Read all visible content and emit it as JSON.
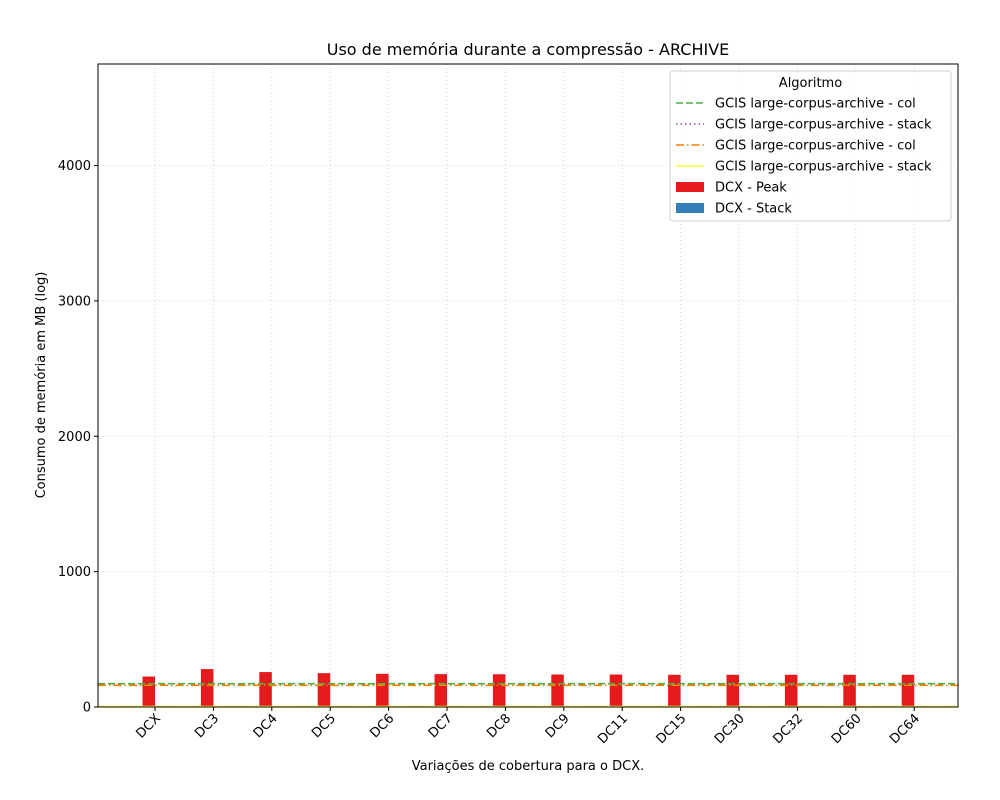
{
  "chart_data": {
    "type": "bar",
    "title": "Uso de memória durante a compressão -  ARCHIVE",
    "xlabel": "Variações de cobertura para o DCX.",
    "ylabel": "Consumo de memória em MB (log)",
    "ylim": [
      0,
      4750
    ],
    "yticks": [
      0,
      1000,
      2000,
      3000,
      4000
    ],
    "grid": true,
    "legend": {
      "title": "Algoritmo",
      "placement": "top-right"
    },
    "categories": [
      "DCX",
      "DC3",
      "DC4",
      "DC5",
      "DC6",
      "DC7",
      "DC8",
      "DC9",
      "DC11",
      "DC15",
      "DC30",
      "DC32",
      "DC60",
      "DC64"
    ],
    "series": [
      {
        "name": "DCX - Peak",
        "color": "#e41a1c",
        "values": [
          225,
          280,
          258,
          250,
          245,
          243,
          242,
          240,
          240,
          238,
          238,
          238,
          238,
          238
        ]
      },
      {
        "name": "DCX - Stack",
        "color": "#377eb8",
        "values": [
          0,
          0,
          0,
          0,
          0,
          0,
          0,
          0,
          0,
          0,
          0,
          0,
          0,
          0
        ]
      }
    ],
    "reference_lines": [
      {
        "name": "GCIS large-corpus-archive - col",
        "value": 172,
        "color": "#4daf4a",
        "style": "dashed"
      },
      {
        "name": "GCIS large-corpus-archive - stack",
        "value": 3,
        "color": "#984ea3",
        "style": "dotted"
      },
      {
        "name": "GCIS large-corpus-archive - col",
        "value": 160,
        "color": "#ff7f00",
        "style": "dashdot"
      },
      {
        "name": "GCIS large-corpus-archive - stack",
        "value": 3,
        "color": "#ffff33",
        "style": "solid"
      }
    ]
  }
}
